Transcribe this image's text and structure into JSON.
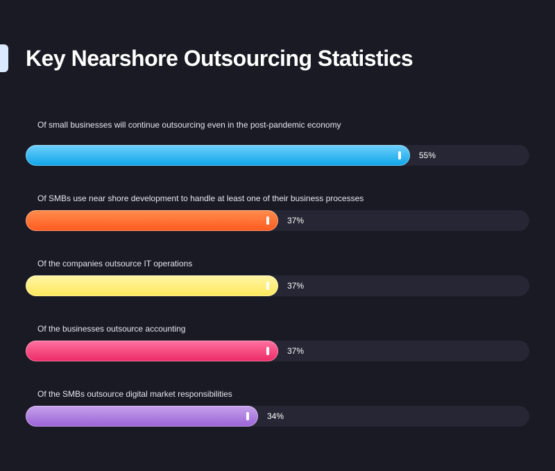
{
  "title": "Key Nearshore Outsourcing Statistics",
  "chart_data": {
    "type": "bar",
    "orientation": "horizontal",
    "title": "Key Nearshore Outsourcing Statistics",
    "unit": "%",
    "grid": false,
    "categories": [
      "Of small businesses will continue outsourcing even in the post-pandemic economy",
      "Of SMBs use near shore development to handle at least one of their business processes",
      "Of the companies outsource IT operations",
      "Of the businesses outsource accounting",
      "Of the SMBs outsource digital market responsibilities"
    ],
    "values": [
      55,
      37,
      37,
      37,
      34
    ],
    "value_labels": [
      "55%",
      "37%",
      "37%",
      "37%",
      "34%"
    ],
    "colors": [
      [
        "#6fd0fb",
        "#0ea5e9"
      ],
      [
        "#ff8d4e",
        "#ff5a1f"
      ],
      [
        "#fff6a8",
        "#fde75a"
      ],
      [
        "#ff72a0",
        "#ec2a66"
      ],
      [
        "#c7a2ec",
        "#9a62d6"
      ]
    ],
    "track_color": "#262634",
    "background": "#1a1a24"
  }
}
